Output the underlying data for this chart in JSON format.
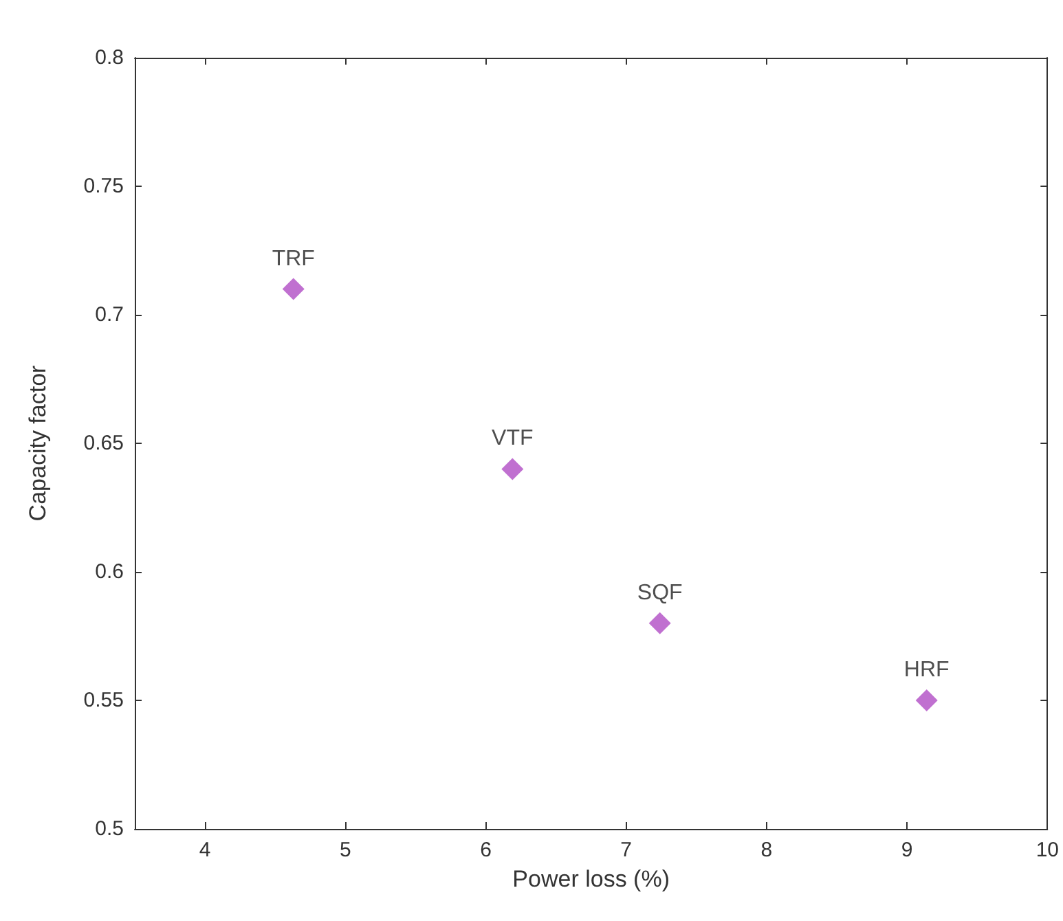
{
  "chart_data": {
    "type": "scatter",
    "xlabel": "Power loss (%)",
    "ylabel": "Capacity factor",
    "x": [
      4.63,
      6.19,
      7.24,
      9.14
    ],
    "values": [
      0.71,
      0.64,
      0.58,
      0.55
    ],
    "color": "#b04cc4",
    "marker": "diamond",
    "annotations": [
      {
        "text": "TRF",
        "x": 4.63,
        "y": 0.71
      },
      {
        "text": "VTF",
        "x": 6.19,
        "y": 0.64
      },
      {
        "text": "SQF",
        "x": 7.24,
        "y": 0.58
      },
      {
        "text": "HRF",
        "x": 9.14,
        "y": 0.55
      }
    ],
    "xlim": [
      3.5,
      10
    ],
    "xticks": [
      4,
      5,
      6,
      7,
      8,
      9,
      10
    ],
    "ylim": [
      0.5,
      0.8
    ],
    "yticks": [
      0.5,
      0.55,
      0.6,
      0.65,
      0.7,
      0.75,
      0.8
    ]
  }
}
